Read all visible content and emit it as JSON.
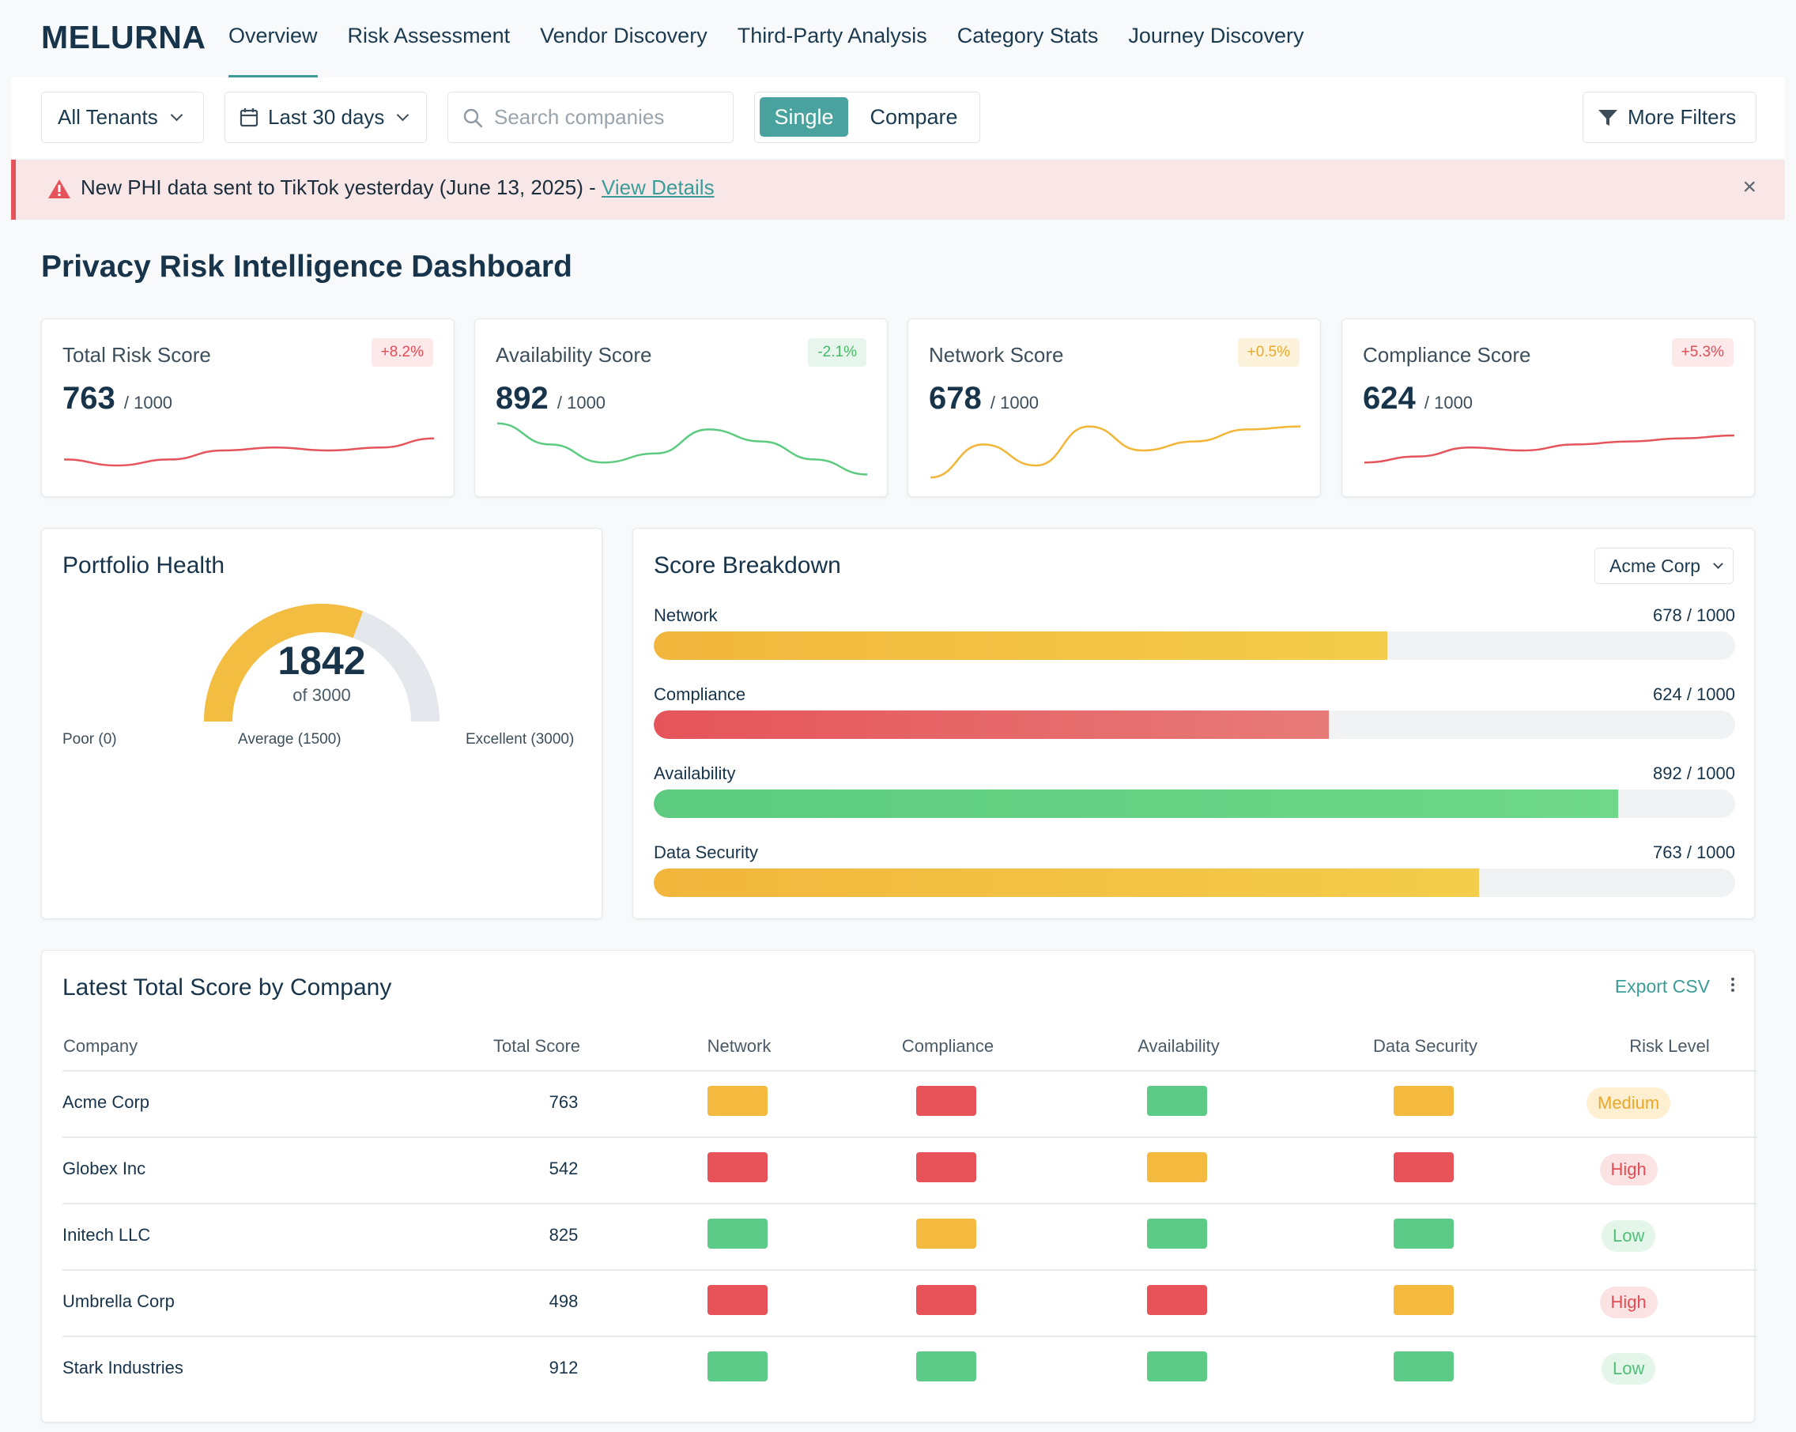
{
  "app": {
    "logo": "MELURNA"
  },
  "nav": {
    "tabs": [
      "Overview",
      "Risk Assessment",
      "Vendor Discovery",
      "Third-Party Analysis",
      "Category Stats",
      "Journey Discovery"
    ],
    "active": "Overview"
  },
  "filters": {
    "tenant": "All Tenants",
    "range": "Last 30 days",
    "search_placeholder": "Search companies",
    "mode_single": "Single",
    "mode_compare": "Compare",
    "more_filters": "More Filters"
  },
  "alert": {
    "text": "New PHI data sent to TikTok yesterday (June 13, 2025) - ",
    "link": "View Details",
    "close": "×"
  },
  "page_title": "Privacy Risk Intelligence Dashboard",
  "kpis": [
    {
      "label": "Total Risk Score",
      "value": "763",
      "unit": "/ 1000",
      "delta": "+8.2%",
      "delta_color": "red",
      "line_color": "#e5545a",
      "spark": [
        0.35,
        0.25,
        0.35,
        0.5,
        0.55,
        0.5,
        0.55,
        0.7
      ]
    },
    {
      "label": "Availability Score",
      "value": "892",
      "unit": "/ 1000",
      "delta": "-2.1%",
      "delta_color": "green",
      "line_color": "#5ccb7f",
      "spark": [
        0.95,
        0.6,
        0.3,
        0.45,
        0.85,
        0.65,
        0.35,
        0.1
      ]
    },
    {
      "label": "Network Score",
      "value": "678",
      "unit": "/ 1000",
      "delta": "+0.5%",
      "delta_color": "amber",
      "line_color": "#f2b536",
      "spark": [
        0.05,
        0.6,
        0.25,
        0.9,
        0.5,
        0.65,
        0.85,
        0.9
      ]
    },
    {
      "label": "Compliance Score",
      "value": "624",
      "unit": "/ 1000",
      "delta": "+5.3%",
      "delta_color": "red",
      "line_color": "#e5545a",
      "spark": [
        0.3,
        0.4,
        0.55,
        0.5,
        0.6,
        0.65,
        0.7,
        0.75
      ]
    }
  ],
  "portfolio": {
    "title": "Portfolio Health",
    "value": "1842",
    "of": "of 3000",
    "fraction": 0.614,
    "label_poor": "Poor (0)",
    "label_avg": "Average (1500)",
    "label_exc": "Excellent (3000)",
    "color_fill": "#f2bd41",
    "color_track": "#e4e7eb"
  },
  "breakdown": {
    "title": "Score Breakdown",
    "company": "Acme Corp",
    "rows": [
      {
        "name": "Network",
        "value": "678 / 1000",
        "fraction": 0.678,
        "color_a": "#f2b63d",
        "color_b": "#f3cd4b"
      },
      {
        "name": "Compliance",
        "value": "624 / 1000",
        "fraction": 0.624,
        "color_a": "#e5545a",
        "color_b": "#e77b78"
      },
      {
        "name": "Availability",
        "value": "892 / 1000",
        "fraction": 0.892,
        "color_a": "#5ccb7f",
        "color_b": "#6fd889"
      },
      {
        "name": "Data Security",
        "value": "763 / 1000",
        "fraction": 0.763,
        "color_a": "#f2b63d",
        "color_b": "#f3cd4b"
      }
    ]
  },
  "table": {
    "title": "Latest Total Score by Company",
    "export": "Export CSV",
    "headers": [
      "Company",
      "Total Score",
      "Network",
      "Compliance",
      "Availability",
      "Data Security",
      "Risk Level"
    ],
    "colors": {
      "green": "#5ccb87",
      "amber": "#f4b93f",
      "red": "#e8535a"
    },
    "rows": [
      {
        "company": "Acme Corp",
        "score": "763",
        "network": "amber",
        "compliance": "red",
        "availability": "green",
        "security": "amber",
        "risk": "Medium",
        "risk_tone": "amber"
      },
      {
        "company": "Globex Inc",
        "score": "542",
        "network": "red",
        "compliance": "red",
        "availability": "amber",
        "security": "red",
        "risk": "High",
        "risk_tone": "red"
      },
      {
        "company": "Initech LLC",
        "score": "825",
        "network": "green",
        "compliance": "amber",
        "availability": "green",
        "security": "green",
        "risk": "Low",
        "risk_tone": "green"
      },
      {
        "company": "Umbrella Corp",
        "score": "498",
        "network": "red",
        "compliance": "red",
        "availability": "red",
        "security": "amber",
        "risk": "High",
        "risk_tone": "red"
      },
      {
        "company": "Stark Industries",
        "score": "912",
        "network": "green",
        "compliance": "green",
        "availability": "green",
        "security": "green",
        "risk": "Low",
        "risk_tone": "green"
      }
    ]
  }
}
